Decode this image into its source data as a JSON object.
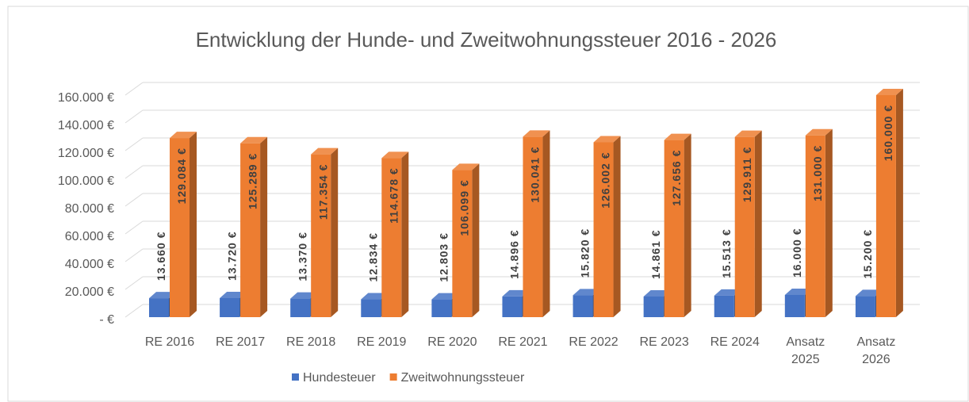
{
  "chart_data": {
    "type": "bar",
    "title": "Entwicklung der Hunde- und Zweitwohnungssteuer  2016 - 2026",
    "categories": [
      "RE 2016",
      "RE 2017",
      "RE 2018",
      "RE 2019",
      "RE 2020",
      "RE 2021",
      "RE 2022",
      "RE 2023",
      "RE 2024",
      "Ansatz 2025",
      "Ansatz 2026"
    ],
    "series": [
      {
        "name": "Hundesteuer",
        "color": "#4472c4",
        "values": [
          13660,
          13720,
          13370,
          12834,
          12803,
          14896,
          15820,
          14861,
          15513,
          16000,
          15200
        ],
        "value_labels": [
          "13.660 €",
          "13.720 €",
          "13.370 €",
          "12.834 €",
          "12.803 €",
          "14.896 €",
          "15.820 €",
          "14.861 €",
          "15.513 €",
          "16.000 €",
          "15.200 €"
        ]
      },
      {
        "name": "Zweitwohnungssteuer",
        "color": "#ed7d31",
        "values": [
          129084,
          125289,
          117354,
          114678,
          106099,
          130041,
          126002,
          127656,
          129911,
          131000,
          160000
        ],
        "value_labels": [
          "129.084 €",
          "125.289 €",
          "117.354 €",
          "114.678 €",
          "106.099 €",
          "130.041 €",
          "126.002 €",
          "127.656 €",
          "129.911 €",
          "131.000 €",
          "160.000 €"
        ]
      }
    ],
    "ylim": [
      0,
      160000
    ],
    "yticks": [
      {
        "value": 0,
        "label": "- €"
      },
      {
        "value": 20000,
        "label": "20.000 €"
      },
      {
        "value": 40000,
        "label": "40.000 €"
      },
      {
        "value": 60000,
        "label": "60.000 €"
      },
      {
        "value": 80000,
        "label": "80.000 €"
      },
      {
        "value": 100000,
        "label": "100.000 €"
      },
      {
        "value": 120000,
        "label": "120.000 €"
      },
      {
        "value": 140000,
        "label": "140.000 €"
      },
      {
        "value": 160000,
        "label": "160.000 €"
      }
    ],
    "grid": true,
    "legend": "bottom"
  }
}
